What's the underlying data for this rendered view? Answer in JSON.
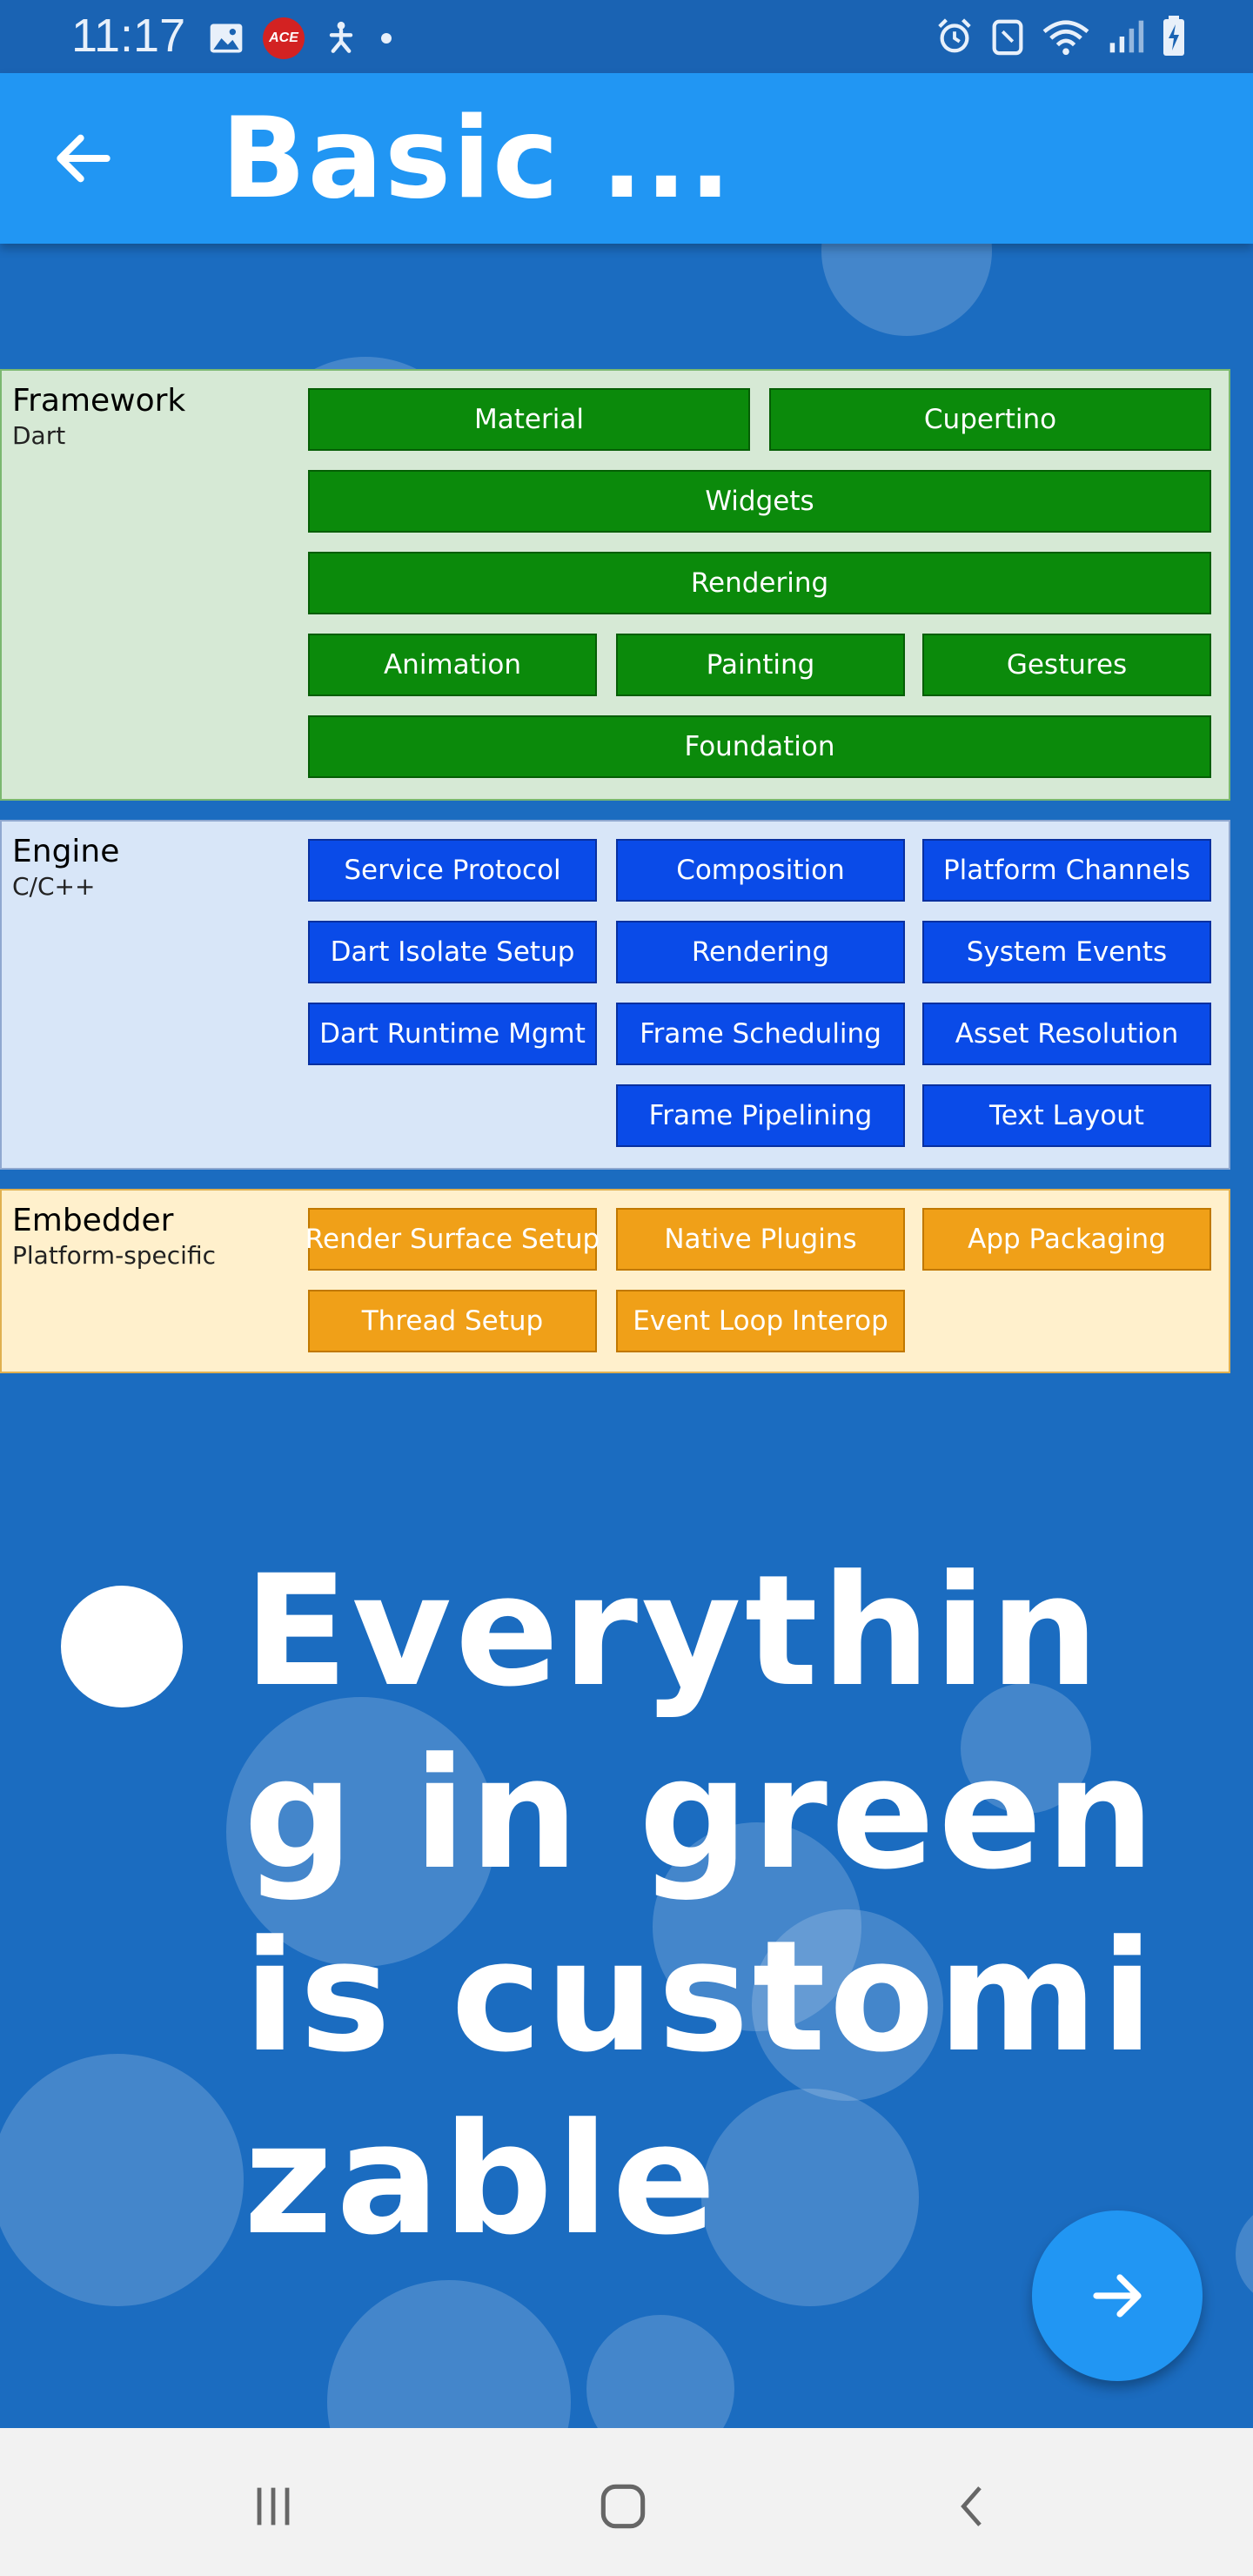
{
  "status_bar": {
    "time": "11:17",
    "left_icons": [
      "image-icon",
      "ace-app-icon",
      "accessibility-icon",
      "dot-icon"
    ],
    "right_icons": [
      "alarm-icon",
      "nfc-icon",
      "wifi-icon",
      "signal-icon",
      "battery-charging-icon"
    ],
    "ace_label": "ACE"
  },
  "app_bar": {
    "title": "Basic ...",
    "back_icon": "arrow-back-icon",
    "color": "#2196f3"
  },
  "diagram": {
    "framework": {
      "name": "Framework",
      "language": "Dart",
      "color": "#0b8a0b",
      "blocks": [
        "Material",
        "Cupertino",
        "Widgets",
        "Rendering",
        "Animation",
        "Painting",
        "Gestures",
        "Foundation"
      ]
    },
    "engine": {
      "name": "Engine",
      "language": "C/C++",
      "color": "#0a4be8",
      "blocks": [
        "Service Protocol",
        "Composition",
        "Platform Channels",
        "Dart Isolate Setup",
        "Rendering",
        "System Events",
        "Dart Runtime Mgmt",
        "Frame Scheduling",
        "Asset Resolution",
        "Frame Pipelining",
        "Text Layout"
      ]
    },
    "embedder": {
      "name": "Embedder",
      "language": "Platform-specific",
      "color": "#f0a018",
      "blocks": [
        "Render Surface Setup",
        "Native Plugins",
        "App Packaging",
        "Thread Setup",
        "Event Loop Interop"
      ]
    }
  },
  "bullet": {
    "text": "Everything in green is customizable"
  },
  "fab": {
    "icon": "arrow-forward-icon"
  },
  "nav_bar": {
    "icons": [
      "recent-apps-icon",
      "home-icon",
      "back-icon"
    ]
  }
}
